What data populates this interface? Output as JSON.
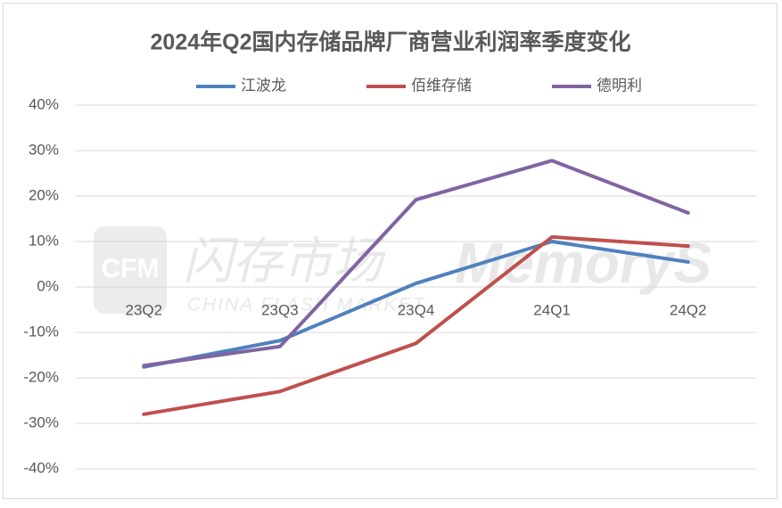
{
  "chart_data": {
    "type": "line",
    "title": "2024年Q2国内存储品牌厂商营业利润率季度变化",
    "categories": [
      "23Q2",
      "23Q3",
      "23Q4",
      "24Q1",
      "24Q2"
    ],
    "series": [
      {
        "name": "江波龙",
        "color": "#4f81bd",
        "values": [
          -17.6,
          -11.8,
          0.8,
          10,
          5.5
        ]
      },
      {
        "name": "佰维存储",
        "color": "#c0504d",
        "values": [
          -28,
          -23,
          -12.4,
          11,
          9
        ]
      },
      {
        "name": "德明利",
        "color": "#8064a2",
        "values": [
          -17.3,
          -13.1,
          19.2,
          27.8,
          16.3
        ]
      }
    ],
    "ylim": [
      -40,
      40
    ],
    "yticks": [
      {
        "value": -40,
        "label": "-40%"
      },
      {
        "value": -30,
        "label": "-30%"
      },
      {
        "value": -20,
        "label": "-20%"
      },
      {
        "value": -10,
        "label": "-10%"
      },
      {
        "value": 0,
        "label": "0%"
      },
      {
        "value": 10,
        "label": "10%"
      },
      {
        "value": 20,
        "label": "20%"
      },
      {
        "value": 30,
        "label": "30%"
      },
      {
        "value": 40,
        "label": "40%"
      }
    ],
    "grid": true,
    "legend": "top",
    "watermark": [
      "CFM",
      "闪存市场",
      "CHINA FLASH MARKET",
      "MemoryS"
    ]
  }
}
